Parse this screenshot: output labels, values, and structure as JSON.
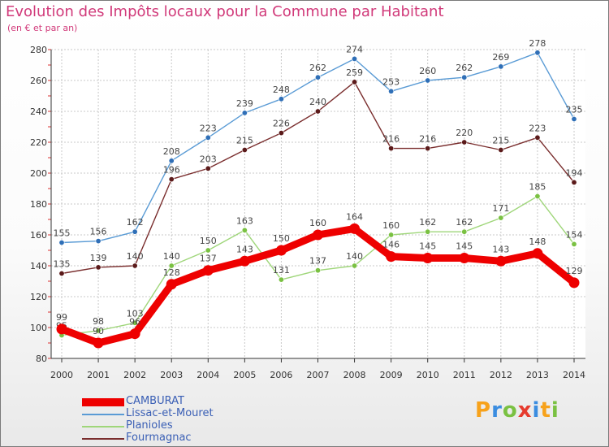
{
  "header": {
    "title": "Evolution des Impôts locaux pour la Commune par Habitant",
    "subtitle": "(en € et par an)"
  },
  "logo": {
    "letters": [
      "P",
      "r",
      "o",
      "x",
      "i",
      "t",
      "i"
    ],
    "colors": [
      "#f7a21b",
      "#3b8de0",
      "#7ac142",
      "#e63b2e",
      "#3b8de0",
      "#f7a21b",
      "#7ac142"
    ]
  },
  "chart_data": {
    "type": "line",
    "title": "Evolution des Impôts locaux pour la Commune par Habitant",
    "ylabel": "(en € et par an)",
    "xlabel": "",
    "ylim": [
      80,
      280
    ],
    "yticks": [
      80,
      100,
      120,
      140,
      160,
      180,
      200,
      220,
      240,
      260,
      280
    ],
    "grid": true,
    "legend_position": "bottom-left",
    "x": [
      "2000",
      "2001",
      "2002",
      "2003",
      "2004",
      "2005",
      "2006",
      "2007",
      "2008",
      "2009",
      "2010",
      "2011",
      "2012",
      "2013",
      "2014"
    ],
    "series": [
      {
        "name": "Lissac-et-Mouret",
        "color": "#5a9bd5",
        "marker": "#2f6fb7",
        "labelColor": "#444444",
        "values": [
          155,
          156,
          162,
          208,
          223,
          239,
          248,
          262,
          274,
          253,
          260,
          262,
          269,
          278,
          235
        ]
      },
      {
        "name": "Fourmagnac",
        "color": "#7a2e2e",
        "marker": "#5b1a1a",
        "labelColor": "#444444",
        "values": [
          135,
          139,
          140,
          196,
          203,
          215,
          226,
          240,
          259,
          216,
          216,
          220,
          215,
          223,
          194
        ]
      },
      {
        "name": "Planioles",
        "color": "#9fd67a",
        "marker": "#7ac142",
        "labelColor": "#444444",
        "values": [
          95,
          98,
          103,
          140,
          150,
          163,
          131,
          137,
          140,
          160,
          162,
          162,
          171,
          185,
          154
        ]
      },
      {
        "name": "CAMBURAT",
        "color": "#ee0000",
        "marker": "#ee0000",
        "labelColor": "#444444",
        "thick": true,
        "values": [
          99,
          90,
          96,
          128,
          137,
          143,
          150,
          160,
          164,
          146,
          145,
          145,
          143,
          148,
          129
        ]
      }
    ],
    "legend_order": [
      "CAMBURAT",
      "Lissac-et-Mouret",
      "Planioles",
      "Fourmagnac"
    ]
  }
}
